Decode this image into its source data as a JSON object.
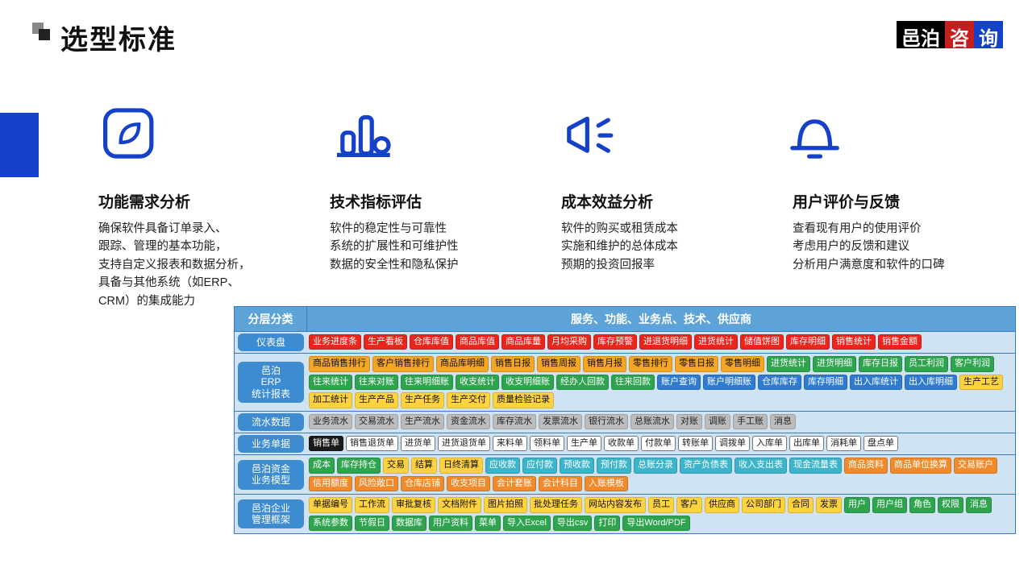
{
  "page": {
    "title": "选型标准",
    "logo": [
      "邑泊",
      "咨",
      "询"
    ]
  },
  "icons": [
    {
      "name": "leaf-icon"
    },
    {
      "name": "chart-icon"
    },
    {
      "name": "megaphone-icon"
    },
    {
      "name": "bell-icon"
    }
  ],
  "criteria": [
    {
      "title": "功能需求分析",
      "body": "确保软件具备订单录入、\n跟踪、管理的基本功能，\n支持自定义报表和数据分析，\n具备与其他系统（如ERP、\nCRM）的集成能力"
    },
    {
      "title": "技术指标评估",
      "body": "软件的稳定性与可靠性\n系统的扩展性和可维护性\n数据的安全性和隐私保护"
    },
    {
      "title": "成本效益分析",
      "body": "软件的购买或租赁成本\n实施和维护的总体成本\n预期的投资回报率"
    },
    {
      "title": "用户评价与反馈",
      "body": "查看现有用户的使用评价\n考虑用户的反馈和建议\n分析用户满意度和软件的口碑"
    }
  ],
  "tableHeader": {
    "left": "分层分类",
    "right": "服务、功能、业务点、技术、供应商"
  },
  "tableColors": {
    "headerBg": "#5ea3d8",
    "rowBg": "#cfe3f2",
    "pillBg": "#3d8bd0",
    "map": {
      "red": "#e8261b",
      "orange": "#f5a623",
      "green": "#2ea44f",
      "blue": "#2f7bd0",
      "yellow": "#ffd23f",
      "gray": "#bcbcbc",
      "white": "#ffffff",
      "cyan": "#3cb4c9",
      "lorange": "#f08a2a",
      "black": "#1a1a1a"
    }
  },
  "tableRows": [
    {
      "label": "仪表盘",
      "tags": [
        {
          "t": "业务进度条",
          "c": "red"
        },
        {
          "t": "生产看板",
          "c": "red"
        },
        {
          "t": "仓库库值",
          "c": "red"
        },
        {
          "t": "商品库值",
          "c": "red"
        },
        {
          "t": "商品库量",
          "c": "red"
        },
        {
          "t": "月均采购",
          "c": "red"
        },
        {
          "t": "库存预警",
          "c": "red"
        },
        {
          "t": "进退货明细",
          "c": "red"
        },
        {
          "t": "进货统计",
          "c": "red"
        },
        {
          "t": "储值饼图",
          "c": "red"
        },
        {
          "t": "库存明细",
          "c": "red"
        },
        {
          "t": "销售统计",
          "c": "red"
        },
        {
          "t": "销售金额",
          "c": "red"
        }
      ]
    },
    {
      "label": "邑泊\nERP\n统计报表",
      "tags": [
        {
          "t": "商品销售排行",
          "c": "orange"
        },
        {
          "t": "客户销售排行",
          "c": "orange"
        },
        {
          "t": "商品库明细",
          "c": "orange"
        },
        {
          "t": "销售日报",
          "c": "orange"
        },
        {
          "t": "销售周报",
          "c": "orange"
        },
        {
          "t": "销售月报",
          "c": "orange"
        },
        {
          "t": "零售排行",
          "c": "orange"
        },
        {
          "t": "零售日报",
          "c": "orange"
        },
        {
          "t": "零售明细",
          "c": "orange"
        },
        {
          "t": "进货统计",
          "c": "green"
        },
        {
          "t": "进货明细",
          "c": "green"
        },
        {
          "t": "库存日报",
          "c": "green"
        },
        {
          "t": "员工利润",
          "c": "green"
        },
        {
          "t": "客户利润",
          "c": "green"
        },
        {
          "t": "往来统计",
          "c": "green"
        },
        {
          "t": "往来对账",
          "c": "green"
        },
        {
          "t": "往来明细账",
          "c": "green"
        },
        {
          "t": "收支统计",
          "c": "green"
        },
        {
          "t": "收支明细账",
          "c": "green"
        },
        {
          "t": "经办人回款",
          "c": "green"
        },
        {
          "t": "往来回款",
          "c": "green"
        },
        {
          "t": "账户查询",
          "c": "blue"
        },
        {
          "t": "账户明细账",
          "c": "blue"
        },
        {
          "t": "仓库库存",
          "c": "blue"
        },
        {
          "t": "库存明细",
          "c": "blue"
        },
        {
          "t": "出入库统计",
          "c": "blue"
        },
        {
          "t": "出入库明细",
          "c": "blue"
        },
        {
          "t": "生产工艺",
          "c": "yellow"
        },
        {
          "t": "加工统计",
          "c": "yellow"
        },
        {
          "t": "生产产品",
          "c": "yellow"
        },
        {
          "t": "生产任务",
          "c": "yellow"
        },
        {
          "t": "生产交付",
          "c": "yellow"
        },
        {
          "t": "质量检验记录",
          "c": "yellow"
        }
      ]
    },
    {
      "label": "流水数据",
      "tags": [
        {
          "t": "业务流水",
          "c": "gray"
        },
        {
          "t": "交易流水",
          "c": "gray"
        },
        {
          "t": "生产流水",
          "c": "gray"
        },
        {
          "t": "资金流水",
          "c": "gray"
        },
        {
          "t": "库存流水",
          "c": "gray"
        },
        {
          "t": "发票流水",
          "c": "gray"
        },
        {
          "t": "银行流水",
          "c": "gray"
        },
        {
          "t": "总账流水",
          "c": "gray"
        },
        {
          "t": "对账",
          "c": "gray"
        },
        {
          "t": "调账",
          "c": "gray"
        },
        {
          "t": "手工账",
          "c": "gray"
        },
        {
          "t": "消息",
          "c": "gray"
        }
      ]
    },
    {
      "label": "业务单据",
      "tags": [
        {
          "t": "销售单",
          "c": "black"
        },
        {
          "t": "销售退货单",
          "c": "white"
        },
        {
          "t": "进货单",
          "c": "white"
        },
        {
          "t": "进货退货单",
          "c": "white"
        },
        {
          "t": "来料单",
          "c": "white"
        },
        {
          "t": "领料单",
          "c": "white"
        },
        {
          "t": "生产单",
          "c": "white"
        },
        {
          "t": "收款单",
          "c": "white"
        },
        {
          "t": "付款单",
          "c": "white"
        },
        {
          "t": "转账单",
          "c": "white"
        },
        {
          "t": "调拨单",
          "c": "white"
        },
        {
          "t": "入库单",
          "c": "white"
        },
        {
          "t": "出库单",
          "c": "white"
        },
        {
          "t": "消耗单",
          "c": "white"
        },
        {
          "t": "盘点单",
          "c": "white"
        }
      ]
    },
    {
      "label": "邑泊资金\n业务模型",
      "tags": [
        {
          "t": "成本",
          "c": "green"
        },
        {
          "t": "库存持仓",
          "c": "green"
        },
        {
          "t": "交易",
          "c": "yellow"
        },
        {
          "t": "结算",
          "c": "yellow"
        },
        {
          "t": "日终清算",
          "c": "yellow"
        },
        {
          "t": "应收款",
          "c": "cyan"
        },
        {
          "t": "应付款",
          "c": "cyan"
        },
        {
          "t": "预收款",
          "c": "cyan"
        },
        {
          "t": "预付款",
          "c": "cyan"
        },
        {
          "t": "总账分录",
          "c": "cyan"
        },
        {
          "t": "资产负债表",
          "c": "cyan"
        },
        {
          "t": "收入支出表",
          "c": "cyan"
        },
        {
          "t": "现金流量表",
          "c": "cyan"
        },
        {
          "t": "商品资料",
          "c": "lorange"
        },
        {
          "t": "商品单位换算",
          "c": "lorange"
        },
        {
          "t": "交易账户",
          "c": "lorange"
        },
        {
          "t": "信用额度",
          "c": "lorange"
        },
        {
          "t": "风险敞口",
          "c": "lorange"
        },
        {
          "t": "仓库店铺",
          "c": "lorange"
        },
        {
          "t": "收支项目",
          "c": "lorange"
        },
        {
          "t": "会计套账",
          "c": "lorange"
        },
        {
          "t": "会计科目",
          "c": "lorange"
        },
        {
          "t": "入账模板",
          "c": "lorange"
        }
      ]
    },
    {
      "label": "邑泊企业\n管理框架",
      "tags": [
        {
          "t": "单据编号",
          "c": "yellow"
        },
        {
          "t": "工作流",
          "c": "yellow"
        },
        {
          "t": "审批复核",
          "c": "yellow"
        },
        {
          "t": "文档附件",
          "c": "yellow"
        },
        {
          "t": "图片拍照",
          "c": "yellow"
        },
        {
          "t": "批处理任务",
          "c": "yellow"
        },
        {
          "t": "网站内容发布",
          "c": "yellow"
        },
        {
          "t": "员工",
          "c": "yellow"
        },
        {
          "t": "客户",
          "c": "yellow"
        },
        {
          "t": "供应商",
          "c": "yellow"
        },
        {
          "t": "公司部门",
          "c": "yellow"
        },
        {
          "t": "合同",
          "c": "yellow"
        },
        {
          "t": "发票",
          "c": "yellow"
        },
        {
          "t": "用户",
          "c": "green"
        },
        {
          "t": "用户组",
          "c": "green"
        },
        {
          "t": "角色",
          "c": "green"
        },
        {
          "t": "权限",
          "c": "green"
        },
        {
          "t": "消息",
          "c": "green"
        },
        {
          "t": "系统参数",
          "c": "green"
        },
        {
          "t": "节假日",
          "c": "green"
        },
        {
          "t": "数据库",
          "c": "green"
        },
        {
          "t": "用户资料",
          "c": "green"
        },
        {
          "t": "菜单",
          "c": "green"
        },
        {
          "t": "导入Excel",
          "c": "green"
        },
        {
          "t": "导出csv",
          "c": "green"
        },
        {
          "t": "打印",
          "c": "green"
        },
        {
          "t": "导出Word/PDF",
          "c": "green"
        }
      ]
    }
  ]
}
